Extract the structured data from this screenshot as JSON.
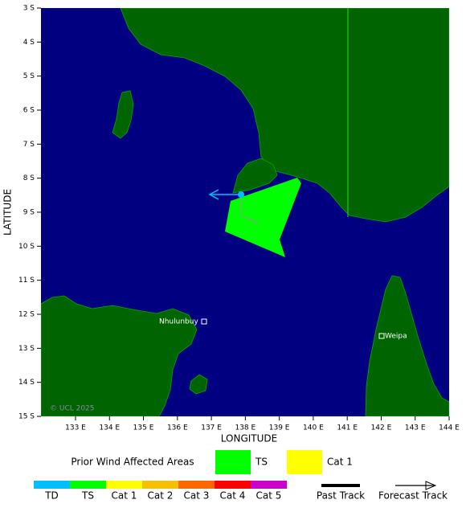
{
  "map": {
    "lat_ticks": [
      "3 S",
      "4 S",
      "5 S",
      "6 S",
      "7 S",
      "8 S",
      "9 S",
      "10 S",
      "11 S",
      "12 S",
      "13 S",
      "14 S",
      "15 S"
    ],
    "lon_ticks": [
      "133 E",
      "134 E",
      "135 E",
      "136 E",
      "137 E",
      "138 E",
      "139 E",
      "140 E",
      "141 E",
      "142 E",
      "143 E",
      "144 E"
    ],
    "y_axis_label": "LATITUDE",
    "x_axis_label": "LONGITUDE",
    "places": [
      "Nhulunbuy",
      "Weipa"
    ],
    "copyright": "© UCL 2025"
  },
  "legend": {
    "title": "Prior Wind Affected Areas",
    "areas": [
      {
        "label": "TS",
        "color": "#00ff00"
      },
      {
        "label": "Cat 1",
        "color": "#ffff00"
      }
    ],
    "scale": [
      {
        "label": "TD",
        "color": "#00bfff"
      },
      {
        "label": "TS",
        "color": "#00ff00"
      },
      {
        "label": "Cat 1",
        "color": "#ffff00"
      },
      {
        "label": "Cat 2",
        "color": "#f5c000"
      },
      {
        "label": "Cat 3",
        "color": "#ff6600"
      },
      {
        "label": "Cat 4",
        "color": "#ff0000"
      },
      {
        "label": "Cat 5",
        "color": "#cc00cc"
      }
    ],
    "tracks": [
      "Past Track",
      "Forecast Track"
    ]
  }
}
